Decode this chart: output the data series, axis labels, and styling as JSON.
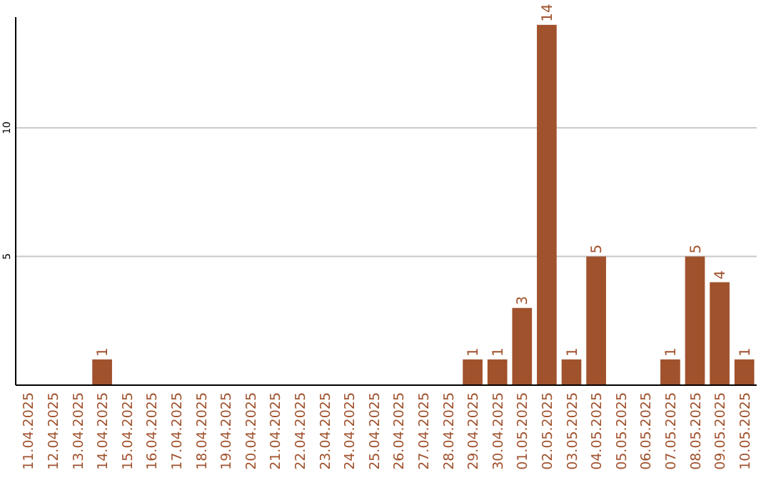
{
  "chart_data": {
    "type": "bar",
    "categories": [
      "11.04.2025",
      "12.04.2025",
      "13.04.2025",
      "14.04.2025",
      "15.04.2025",
      "16.04.2025",
      "17.04.2025",
      "18.04.2025",
      "19.04.2025",
      "20.04.2025",
      "21.04.2025",
      "22.04.2025",
      "23.04.2025",
      "24.04.2025",
      "25.04.2025",
      "26.04.2025",
      "27.04.2025",
      "28.04.2025",
      "29.04.2025",
      "30.04.2025",
      "01.05.2025",
      "02.05.2025",
      "03.05.2025",
      "04.05.2025",
      "05.05.2025",
      "06.05.2025",
      "07.05.2025",
      "08.05.2025",
      "09.05.2025",
      "10.05.2025"
    ],
    "values": [
      0,
      0,
      0,
      1,
      0,
      0,
      0,
      0,
      0,
      0,
      0,
      0,
      0,
      0,
      0,
      0,
      0,
      0,
      1,
      1,
      3,
      14,
      1,
      5,
      0,
      0,
      1,
      5,
      4,
      1
    ],
    "value_labels": [
      null,
      null,
      null,
      "1",
      null,
      null,
      null,
      null,
      null,
      null,
      null,
      null,
      null,
      null,
      null,
      null,
      null,
      null,
      "1",
      "1",
      "3",
      "14",
      "1",
      "5",
      null,
      null,
      "1",
      "5",
      "4",
      "1"
    ],
    "color": "#a0522d",
    "ylim": [
      0,
      14.3
    ],
    "yticks": [
      5,
      10
    ],
    "grid": "y"
  }
}
